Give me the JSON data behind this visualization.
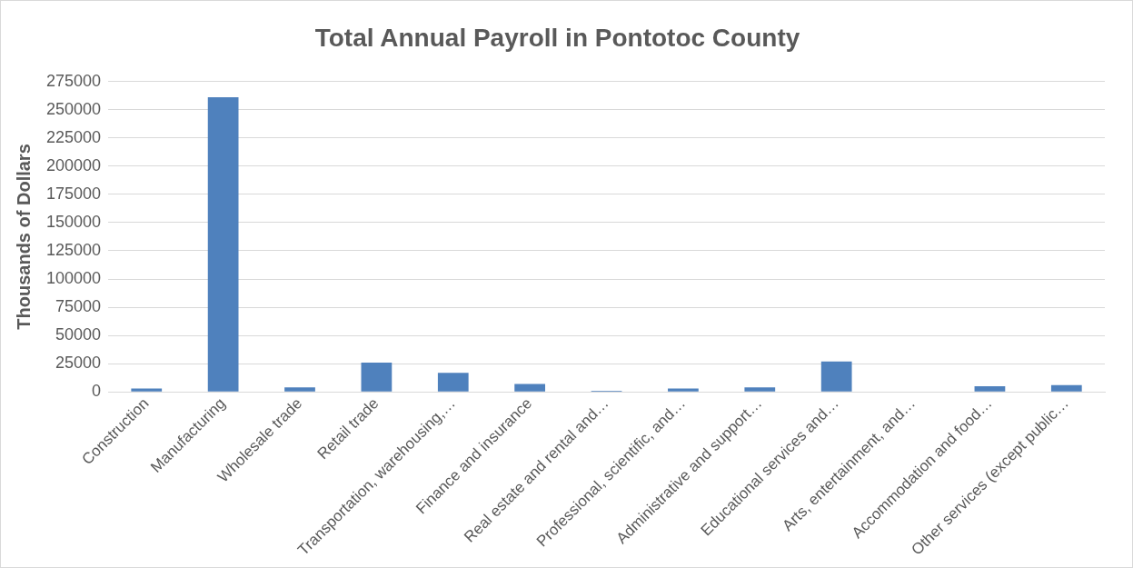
{
  "chart_data": {
    "type": "bar",
    "title": "Total Annual Payroll in Pontotoc County",
    "ylabel": "Thousands of Dollars",
    "categories": [
      "Construction",
      "Manufacturing",
      "Wholesale trade",
      "Retail trade",
      "Transportation, warehousing,…",
      "Finance and insurance",
      "Real estate and rental and…",
      "Professional, scientific, and…",
      "Administrative and support…",
      "Educational services and…",
      "Arts, entertainment, and…",
      "Accommodation and food…",
      "Other services (except public…"
    ],
    "values": [
      3000,
      261000,
      4000,
      26000,
      17000,
      7000,
      1000,
      3000,
      4000,
      27000,
      0,
      5000,
      6000
    ],
    "color": "#4f81bd",
    "ylim": [
      0,
      275000
    ],
    "yticks": [
      0,
      25000,
      50000,
      75000,
      100000,
      125000,
      150000,
      175000,
      200000,
      225000,
      250000,
      275000
    ],
    "grid": "y"
  }
}
